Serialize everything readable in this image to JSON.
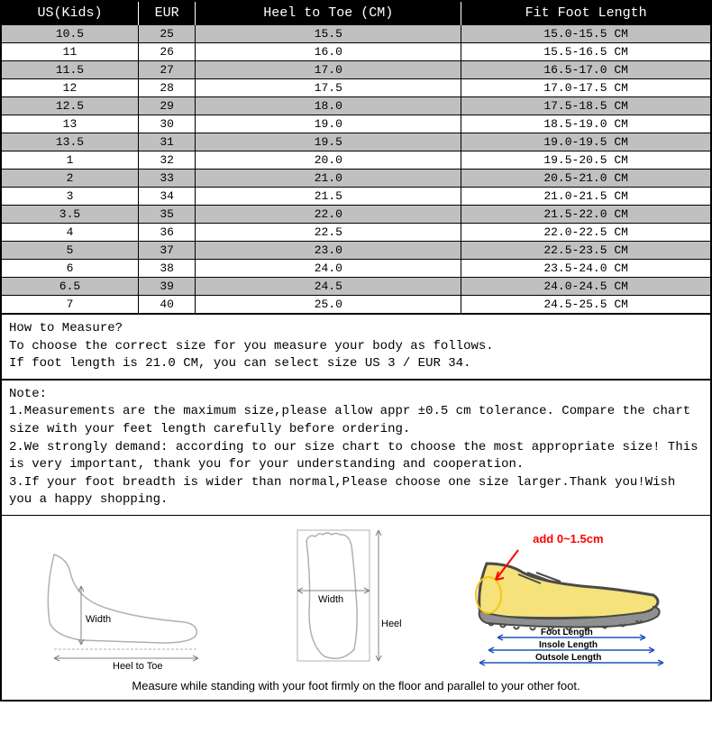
{
  "table": {
    "columns": [
      "US(Kids)",
      "EUR",
      "Heel to Toe (CM)",
      "Fit Foot Length"
    ],
    "rows": [
      [
        "10.5",
        "25",
        "15.5",
        "15.0-15.5 CM"
      ],
      [
        "11",
        "26",
        "16.0",
        "15.5-16.5 CM"
      ],
      [
        "11.5",
        "27",
        "17.0",
        "16.5-17.0 CM"
      ],
      [
        "12",
        "28",
        "17.5",
        "17.0-17.5 CM"
      ],
      [
        "12.5",
        "29",
        "18.0",
        "17.5-18.5 CM"
      ],
      [
        "13",
        "30",
        "19.0",
        "18.5-19.0 CM"
      ],
      [
        "13.5",
        "31",
        "19.5",
        "19.0-19.5 CM"
      ],
      [
        "1",
        "32",
        "20.0",
        "19.5-20.5 CM"
      ],
      [
        "2",
        "33",
        "21.0",
        "20.5-21.0 CM"
      ],
      [
        "3",
        "34",
        "21.5",
        "21.0-21.5 CM"
      ],
      [
        "3.5",
        "35",
        "22.0",
        "21.5-22.0 CM"
      ],
      [
        "4",
        "36",
        "22.5",
        "22.0-22.5 CM"
      ],
      [
        "5",
        "37",
        "23.0",
        "22.5-23.5 CM"
      ],
      [
        "6",
        "38",
        "24.0",
        "23.5-24.0 CM"
      ],
      [
        "6.5",
        "39",
        "24.5",
        "24.0-24.5 CM"
      ],
      [
        "7",
        "40",
        "25.0",
        "24.5-25.5 CM"
      ]
    ],
    "header_bg": "#000000",
    "header_fg": "#ffffff",
    "row_odd_bg": "#c0c0c0",
    "row_even_bg": "#ffffff",
    "border_color": "#000000",
    "font_family": "Courier New",
    "header_fontsize": 15,
    "cell_fontsize": 13
  },
  "measure": {
    "title": "How to Measure?",
    "line1": "To choose the correct size for you measure your body as follows.",
    "line2": "If foot length is 21.0 CM, you can select size US 3 / EUR 34."
  },
  "note": {
    "title": "Note:",
    "item1": "1.Measurements are the maximum size,please allow appr ±0.5 cm tolerance. Compare the chart size with your feet length carefully before ordering.",
    "item2": "2.We strongly demand: according to our size chart to choose the most appropriate size! This is very important, thank you for your understanding and cooperation.",
    "item3": "3.If your foot breadth is wider than normal,Please choose one size larger.Thank you!Wish you a happy shopping."
  },
  "diagram": {
    "side_width_label": "Width",
    "side_heel_label": "Heel to Toe",
    "top_width_label": "Width",
    "top_heel_label": "Heel to Toe",
    "add_label": "add 0~1.5cm",
    "foot_length_label": "Foot Length",
    "insole_length_label": "Insole Length",
    "outsole_length_label": "Outsole Length",
    "caption": "Measure while standing with your foot firmly on the floor and parallel to your other foot.",
    "line_color": "#c0c0c0",
    "shoe_body_color": "#f5e27a",
    "shoe_outline_color": "#4a4a4a",
    "shoe_sole_color": "#808080",
    "arrow_color": "#2050c0",
    "accent_color": "#ff0000"
  }
}
